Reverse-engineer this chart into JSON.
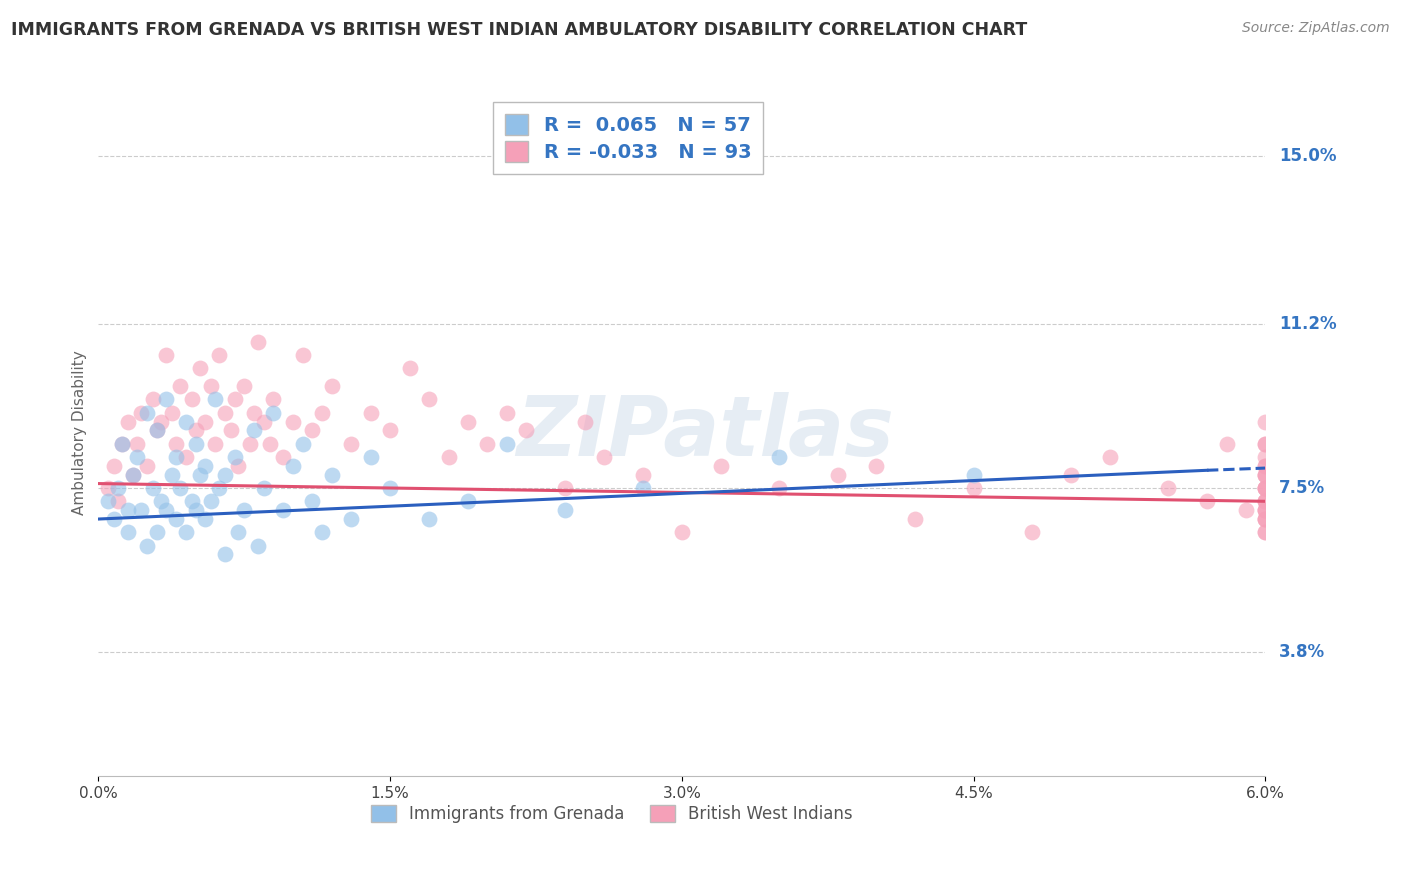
{
  "title": "IMMIGRANTS FROM GRENADA VS BRITISH WEST INDIAN AMBULATORY DISABILITY CORRELATION CHART",
  "source": "Source: ZipAtlas.com",
  "ylabel": "Ambulatory Disability",
  "xlim": [
    0.0,
    6.0
  ],
  "ylim": [
    1.0,
    16.5
  ],
  "ytick_vals": [
    3.8,
    7.5,
    11.2,
    15.0
  ],
  "ytick_labels": [
    "3.8%",
    "7.5%",
    "11.2%",
    "15.0%"
  ],
  "xtick_vals": [
    0.0,
    1.5,
    3.0,
    4.5,
    6.0
  ],
  "xtick_labels": [
    "0.0%",
    "1.5%",
    "3.0%",
    "4.5%",
    "6.0%"
  ],
  "legend1_label": "Immigrants from Grenada",
  "legend2_label": "British West Indians",
  "R1_text": "R =  0.065",
  "N1_text": "N = 57",
  "R2_text": "R = -0.033",
  "N2_text": "N = 93",
  "color1": "#92C0E8",
  "color2": "#F5A0B8",
  "trendline1_color": "#2B5FBF",
  "trendline2_color": "#E05070",
  "watermark": "ZIPatlas",
  "blue_x": [
    0.05,
    0.08,
    0.1,
    0.12,
    0.15,
    0.15,
    0.18,
    0.2,
    0.22,
    0.25,
    0.25,
    0.28,
    0.3,
    0.3,
    0.32,
    0.35,
    0.35,
    0.38,
    0.4,
    0.4,
    0.42,
    0.45,
    0.45,
    0.48,
    0.5,
    0.5,
    0.52,
    0.55,
    0.55,
    0.58,
    0.6,
    0.62,
    0.65,
    0.65,
    0.7,
    0.72,
    0.75,
    0.8,
    0.82,
    0.85,
    0.9,
    0.95,
    1.0,
    1.05,
    1.1,
    1.15,
    1.2,
    1.3,
    1.4,
    1.5,
    1.7,
    1.9,
    2.1,
    2.4,
    2.8,
    3.5,
    4.5
  ],
  "blue_y": [
    7.2,
    6.8,
    7.5,
    8.5,
    6.5,
    7.0,
    7.8,
    8.2,
    7.0,
    9.2,
    6.2,
    7.5,
    8.8,
    6.5,
    7.2,
    9.5,
    7.0,
    7.8,
    8.2,
    6.8,
    7.5,
    9.0,
    6.5,
    7.2,
    8.5,
    7.0,
    7.8,
    6.8,
    8.0,
    7.2,
    9.5,
    7.5,
    6.0,
    7.8,
    8.2,
    6.5,
    7.0,
    8.8,
    6.2,
    7.5,
    9.2,
    7.0,
    8.0,
    8.5,
    7.2,
    6.5,
    7.8,
    6.8,
    8.2,
    7.5,
    6.8,
    7.2,
    8.5,
    7.0,
    7.5,
    8.2,
    7.8
  ],
  "pink_x": [
    0.05,
    0.08,
    0.1,
    0.12,
    0.15,
    0.18,
    0.2,
    0.22,
    0.25,
    0.28,
    0.3,
    0.32,
    0.35,
    0.38,
    0.4,
    0.42,
    0.45,
    0.48,
    0.5,
    0.52,
    0.55,
    0.58,
    0.6,
    0.62,
    0.65,
    0.68,
    0.7,
    0.72,
    0.75,
    0.78,
    0.8,
    0.82,
    0.85,
    0.88,
    0.9,
    0.95,
    1.0,
    1.05,
    1.1,
    1.15,
    1.2,
    1.3,
    1.4,
    1.5,
    1.6,
    1.7,
    1.8,
    1.9,
    2.0,
    2.1,
    2.2,
    2.4,
    2.5,
    2.6,
    2.8,
    3.0,
    3.2,
    3.5,
    3.8,
    4.0,
    4.2,
    4.5,
    4.8,
    5.0,
    5.2,
    5.5,
    5.7,
    5.8,
    5.9,
    6.0,
    6.0,
    6.0,
    6.0,
    6.0,
    6.0,
    6.0,
    6.0,
    6.0,
    6.0,
    6.0,
    6.0,
    6.0,
    6.0,
    6.0,
    6.0,
    6.0,
    6.0,
    6.0,
    6.0,
    6.0,
    6.0,
    6.0,
    6.0
  ],
  "pink_y": [
    7.5,
    8.0,
    7.2,
    8.5,
    9.0,
    7.8,
    8.5,
    9.2,
    8.0,
    9.5,
    8.8,
    9.0,
    10.5,
    9.2,
    8.5,
    9.8,
    8.2,
    9.5,
    8.8,
    10.2,
    9.0,
    9.8,
    8.5,
    10.5,
    9.2,
    8.8,
    9.5,
    8.0,
    9.8,
    8.5,
    9.2,
    10.8,
    9.0,
    8.5,
    9.5,
    8.2,
    9.0,
    10.5,
    8.8,
    9.2,
    9.8,
    8.5,
    9.2,
    8.8,
    10.2,
    9.5,
    8.2,
    9.0,
    8.5,
    9.2,
    8.8,
    7.5,
    9.0,
    8.2,
    7.8,
    6.5,
    8.0,
    7.5,
    7.8,
    8.0,
    6.8,
    7.5,
    6.5,
    7.8,
    8.2,
    7.5,
    7.2,
    8.5,
    7.0,
    7.5,
    6.8,
    8.0,
    7.2,
    7.8,
    6.5,
    7.0,
    8.5,
    7.5,
    6.8,
    7.2,
    8.0,
    7.5,
    7.8,
    9.0,
    6.5,
    7.2,
    8.5,
    7.0,
    7.5,
    6.8,
    8.2,
    7.0,
    7.8
  ],
  "blue_trend_x0": 0.0,
  "blue_trend_y0": 6.8,
  "blue_trend_x1": 5.7,
  "blue_trend_y1": 7.9,
  "blue_dash_x0": 5.7,
  "blue_dash_y0": 7.9,
  "blue_dash_x1": 6.0,
  "blue_dash_y1": 7.95,
  "pink_trend_x0": 0.0,
  "pink_trend_y0": 7.6,
  "pink_trend_x1": 6.0,
  "pink_trend_y1": 7.2
}
